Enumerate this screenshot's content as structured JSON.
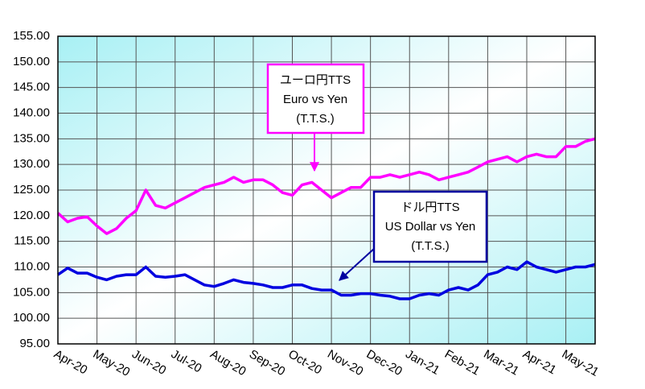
{
  "chart_data": {
    "type": "line",
    "categories": [
      "Apr-20",
      null,
      null,
      null,
      "May-20",
      null,
      null,
      null,
      "Jun-20",
      null,
      null,
      null,
      "Jul-20",
      null,
      null,
      null,
      "Aug-20",
      null,
      null,
      null,
      "Sep-20",
      null,
      null,
      null,
      "Oct-20",
      null,
      null,
      null,
      "Nov-20",
      null,
      null,
      null,
      "Dec-20",
      null,
      null,
      null,
      "Jan-21",
      null,
      null,
      null,
      "Feb-21",
      null,
      null,
      null,
      "Mar-21",
      null,
      null,
      null,
      "Apr-21",
      null,
      null,
      null,
      "May-21",
      null,
      null,
      null
    ],
    "series": [
      {
        "name": "ユーロ円TTS",
        "note": [
          "Euro vs Yen",
          "(T.T.S.)"
        ],
        "color": "#ff00ff",
        "values": [
          120.5,
          118.8,
          119.5,
          119.8,
          118,
          116.5,
          117.5,
          119.5,
          121,
          125,
          122,
          121.5,
          122.5,
          123.5,
          124.5,
          125.5,
          126,
          126.5,
          127.5,
          126.5,
          127,
          127,
          126,
          124.5,
          124,
          126,
          126.5,
          125,
          123.5,
          124.5,
          125.5,
          125.5,
          127.5,
          127.5,
          128,
          127.5,
          128,
          128.5,
          128,
          127,
          127.5,
          128,
          128.5,
          129.5,
          130.5,
          131,
          131.5,
          130.5,
          131.5,
          132,
          131.5,
          131.5,
          133.5,
          133.5,
          134.5,
          135
        ]
      },
      {
        "name": "ドル円TTS",
        "note": [
          "US Dollar vs Yen",
          "(T.T.S.)"
        ],
        "color": "#0000e0",
        "values": [
          108.5,
          109.8,
          108.8,
          108.8,
          108,
          107.5,
          108.2,
          108.5,
          108.5,
          110,
          108.2,
          108,
          108.2,
          108.5,
          107.5,
          106.5,
          106.2,
          106.8,
          107.5,
          107,
          106.8,
          106.5,
          106,
          106,
          106.5,
          106.5,
          105.8,
          105.5,
          105.5,
          104.5,
          104.5,
          104.8,
          104.8,
          104.5,
          104.3,
          103.8,
          103.8,
          104.5,
          104.8,
          104.5,
          105.5,
          106,
          105.5,
          106.5,
          108.5,
          109,
          110,
          109.5,
          111,
          110,
          109.5,
          109,
          109.5,
          110,
          110,
          110.5
        ]
      }
    ],
    "ylim": [
      95,
      155
    ],
    "yticks": [
      {
        "value": 95,
        "label": "95.00"
      },
      {
        "value": 100,
        "label": "100.00"
      },
      {
        "value": 105,
        "label": "105.00"
      },
      {
        "value": 110,
        "label": "110.00"
      },
      {
        "value": 115,
        "label": "115.00"
      },
      {
        "value": 120,
        "label": "120.00"
      },
      {
        "value": 125,
        "label": "125.00"
      },
      {
        "value": 130,
        "label": "130.00"
      },
      {
        "value": 135,
        "label": "135.00"
      },
      {
        "value": 140,
        "label": "140.00"
      },
      {
        "value": 145,
        "label": "145.00"
      },
      {
        "value": 150,
        "label": "150.00"
      },
      {
        "value": 155,
        "label": "155.00"
      }
    ],
    "grid": true
  }
}
